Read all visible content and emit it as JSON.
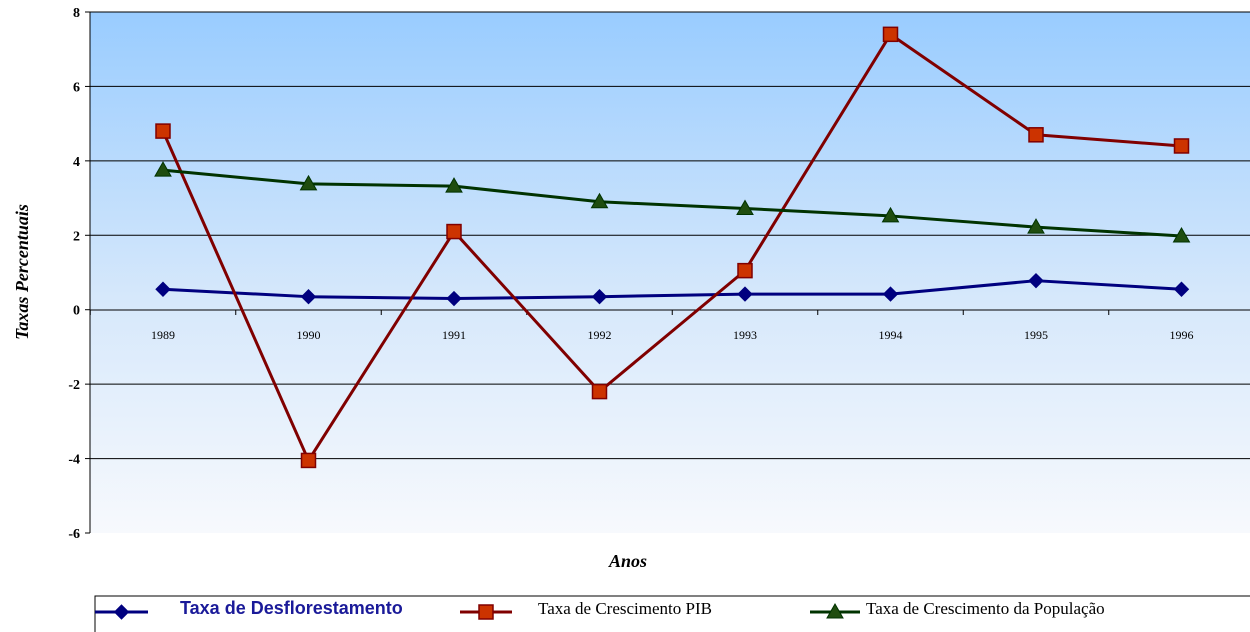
{
  "chart_data": {
    "type": "line",
    "title": "",
    "xlabel": "Anos",
    "ylabel": "Taxas Percentuais",
    "categories": [
      "1989",
      "1990",
      "1991",
      "1992",
      "1993",
      "1994",
      "1995",
      "1996"
    ],
    "ylim": [
      -6,
      8
    ],
    "yticks": [
      8,
      6,
      4,
      2,
      0,
      -2,
      -4,
      -6
    ],
    "grid": true,
    "legend_position": "bottom",
    "series": [
      {
        "name": "Taxa de Desflorestamento",
        "marker": "diamond",
        "color": "#00007f",
        "values": [
          0.55,
          0.35,
          0.3,
          0.35,
          0.42,
          0.42,
          0.78,
          0.55
        ]
      },
      {
        "name": "Taxa de Crescimento PIB",
        "marker": "square",
        "color": "#800000",
        "marker_fill": "#cc3300",
        "values": [
          4.8,
          -4.05,
          2.1,
          -2.2,
          1.05,
          7.4,
          4.7,
          4.4
        ]
      },
      {
        "name": "Taxa de Crescimento da População",
        "marker": "triangle",
        "color": "#003300",
        "marker_fill": "#1f4d0f",
        "values": [
          3.75,
          3.38,
          3.32,
          2.9,
          2.72,
          2.52,
          2.22,
          1.98
        ]
      }
    ]
  }
}
